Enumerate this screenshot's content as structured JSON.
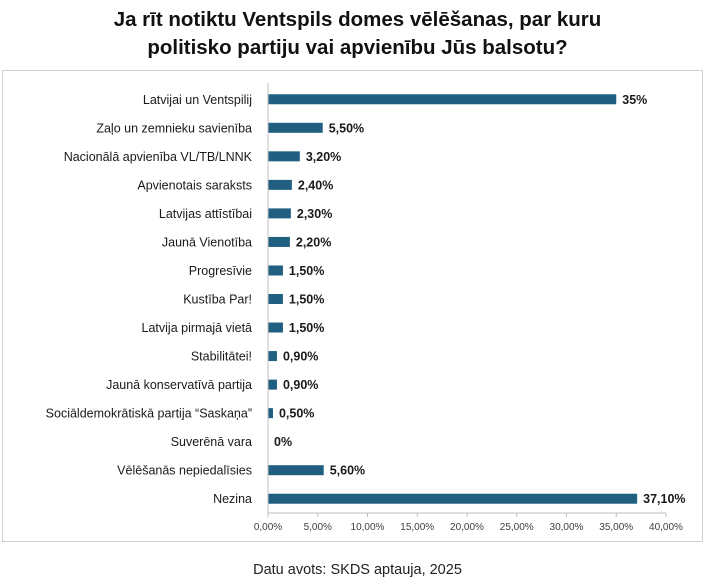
{
  "title_line1": "Ja rīt notiktu Ventspils domes vēlēšanas, par kuru",
  "title_line2": "politisko partiju vai apvienību Jūs balsotu?",
  "source": "Datu avots: SKDS aptauja, 2025",
  "colors": {
    "bar": "#215f81",
    "axis": "#bfbfbf",
    "text": "#1a1a1a"
  },
  "chart_data": {
    "type": "bar",
    "orientation": "horizontal",
    "categories": [
      "Latvijai un Ventspilij",
      "Zaļo un zemnieku savienība",
      "Nacionālā apvienība VL/TB/LNNK",
      "Apvienotais saraksts",
      "Latvijas attīstībai",
      "Jaunā Vienotība",
      "Progresīvie",
      "Kustība Par!",
      "Latvija pirmajā vietā",
      "Stabilitātei!",
      "Jaunā konservatīvā partija",
      "Sociāldemokrātiskā partija “Saskaņa”",
      "Suverēnā vara",
      "Vēlēšanās nepiedalīsies",
      "Nezina"
    ],
    "values": [
      35,
      5.5,
      3.2,
      2.4,
      2.3,
      2.2,
      1.5,
      1.5,
      1.5,
      0.9,
      0.9,
      0.5,
      0,
      5.6,
      37.1
    ],
    "data_labels": [
      "35%",
      "5,50%",
      "3,20%",
      "2,40%",
      "2,30%",
      "2,20%",
      "1,50%",
      "1,50%",
      "1,50%",
      "0,90%",
      "0,90%",
      "0,50%",
      "0%",
      "5,60%",
      "37,10%"
    ],
    "xlim": [
      0,
      40
    ],
    "x_ticks": [
      0,
      5,
      10,
      15,
      20,
      25,
      30,
      35,
      40
    ],
    "x_tick_labels": [
      "0,00%",
      "5,00%",
      "10,00%",
      "15,00%",
      "20,00%",
      "25,00%",
      "30,00%",
      "35,00%",
      "40,00%"
    ],
    "grid": false,
    "legend": "none"
  }
}
